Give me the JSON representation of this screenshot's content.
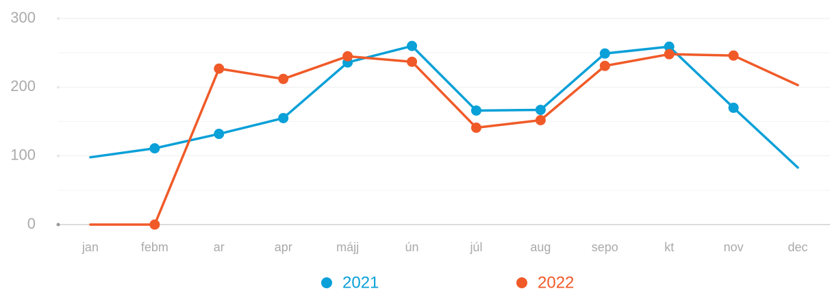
{
  "chart_data": {
    "type": "line",
    "categories": [
      "jan",
      "febm",
      "ar",
      "apr",
      "májj",
      "ún",
      "júl",
      "aug",
      "sepo",
      "kt",
      "nov",
      "dec"
    ],
    "series": [
      {
        "name": "2021",
        "color": "#0aa0d8",
        "values": [
          98,
          111,
          132,
          155,
          236,
          260,
          166,
          167,
          249,
          259,
          170,
          83
        ]
      },
      {
        "name": "2022",
        "color": "#f05a28",
        "values": [
          0,
          0,
          227,
          212,
          245,
          237,
          141,
          152,
          231,
          248,
          246,
          203
        ]
      }
    ],
    "ylim": [
      0,
      300
    ],
    "yticks": [
      0,
      100,
      200,
      300
    ],
    "minor_yticks": [
      50,
      150,
      250
    ],
    "grid": true
  }
}
